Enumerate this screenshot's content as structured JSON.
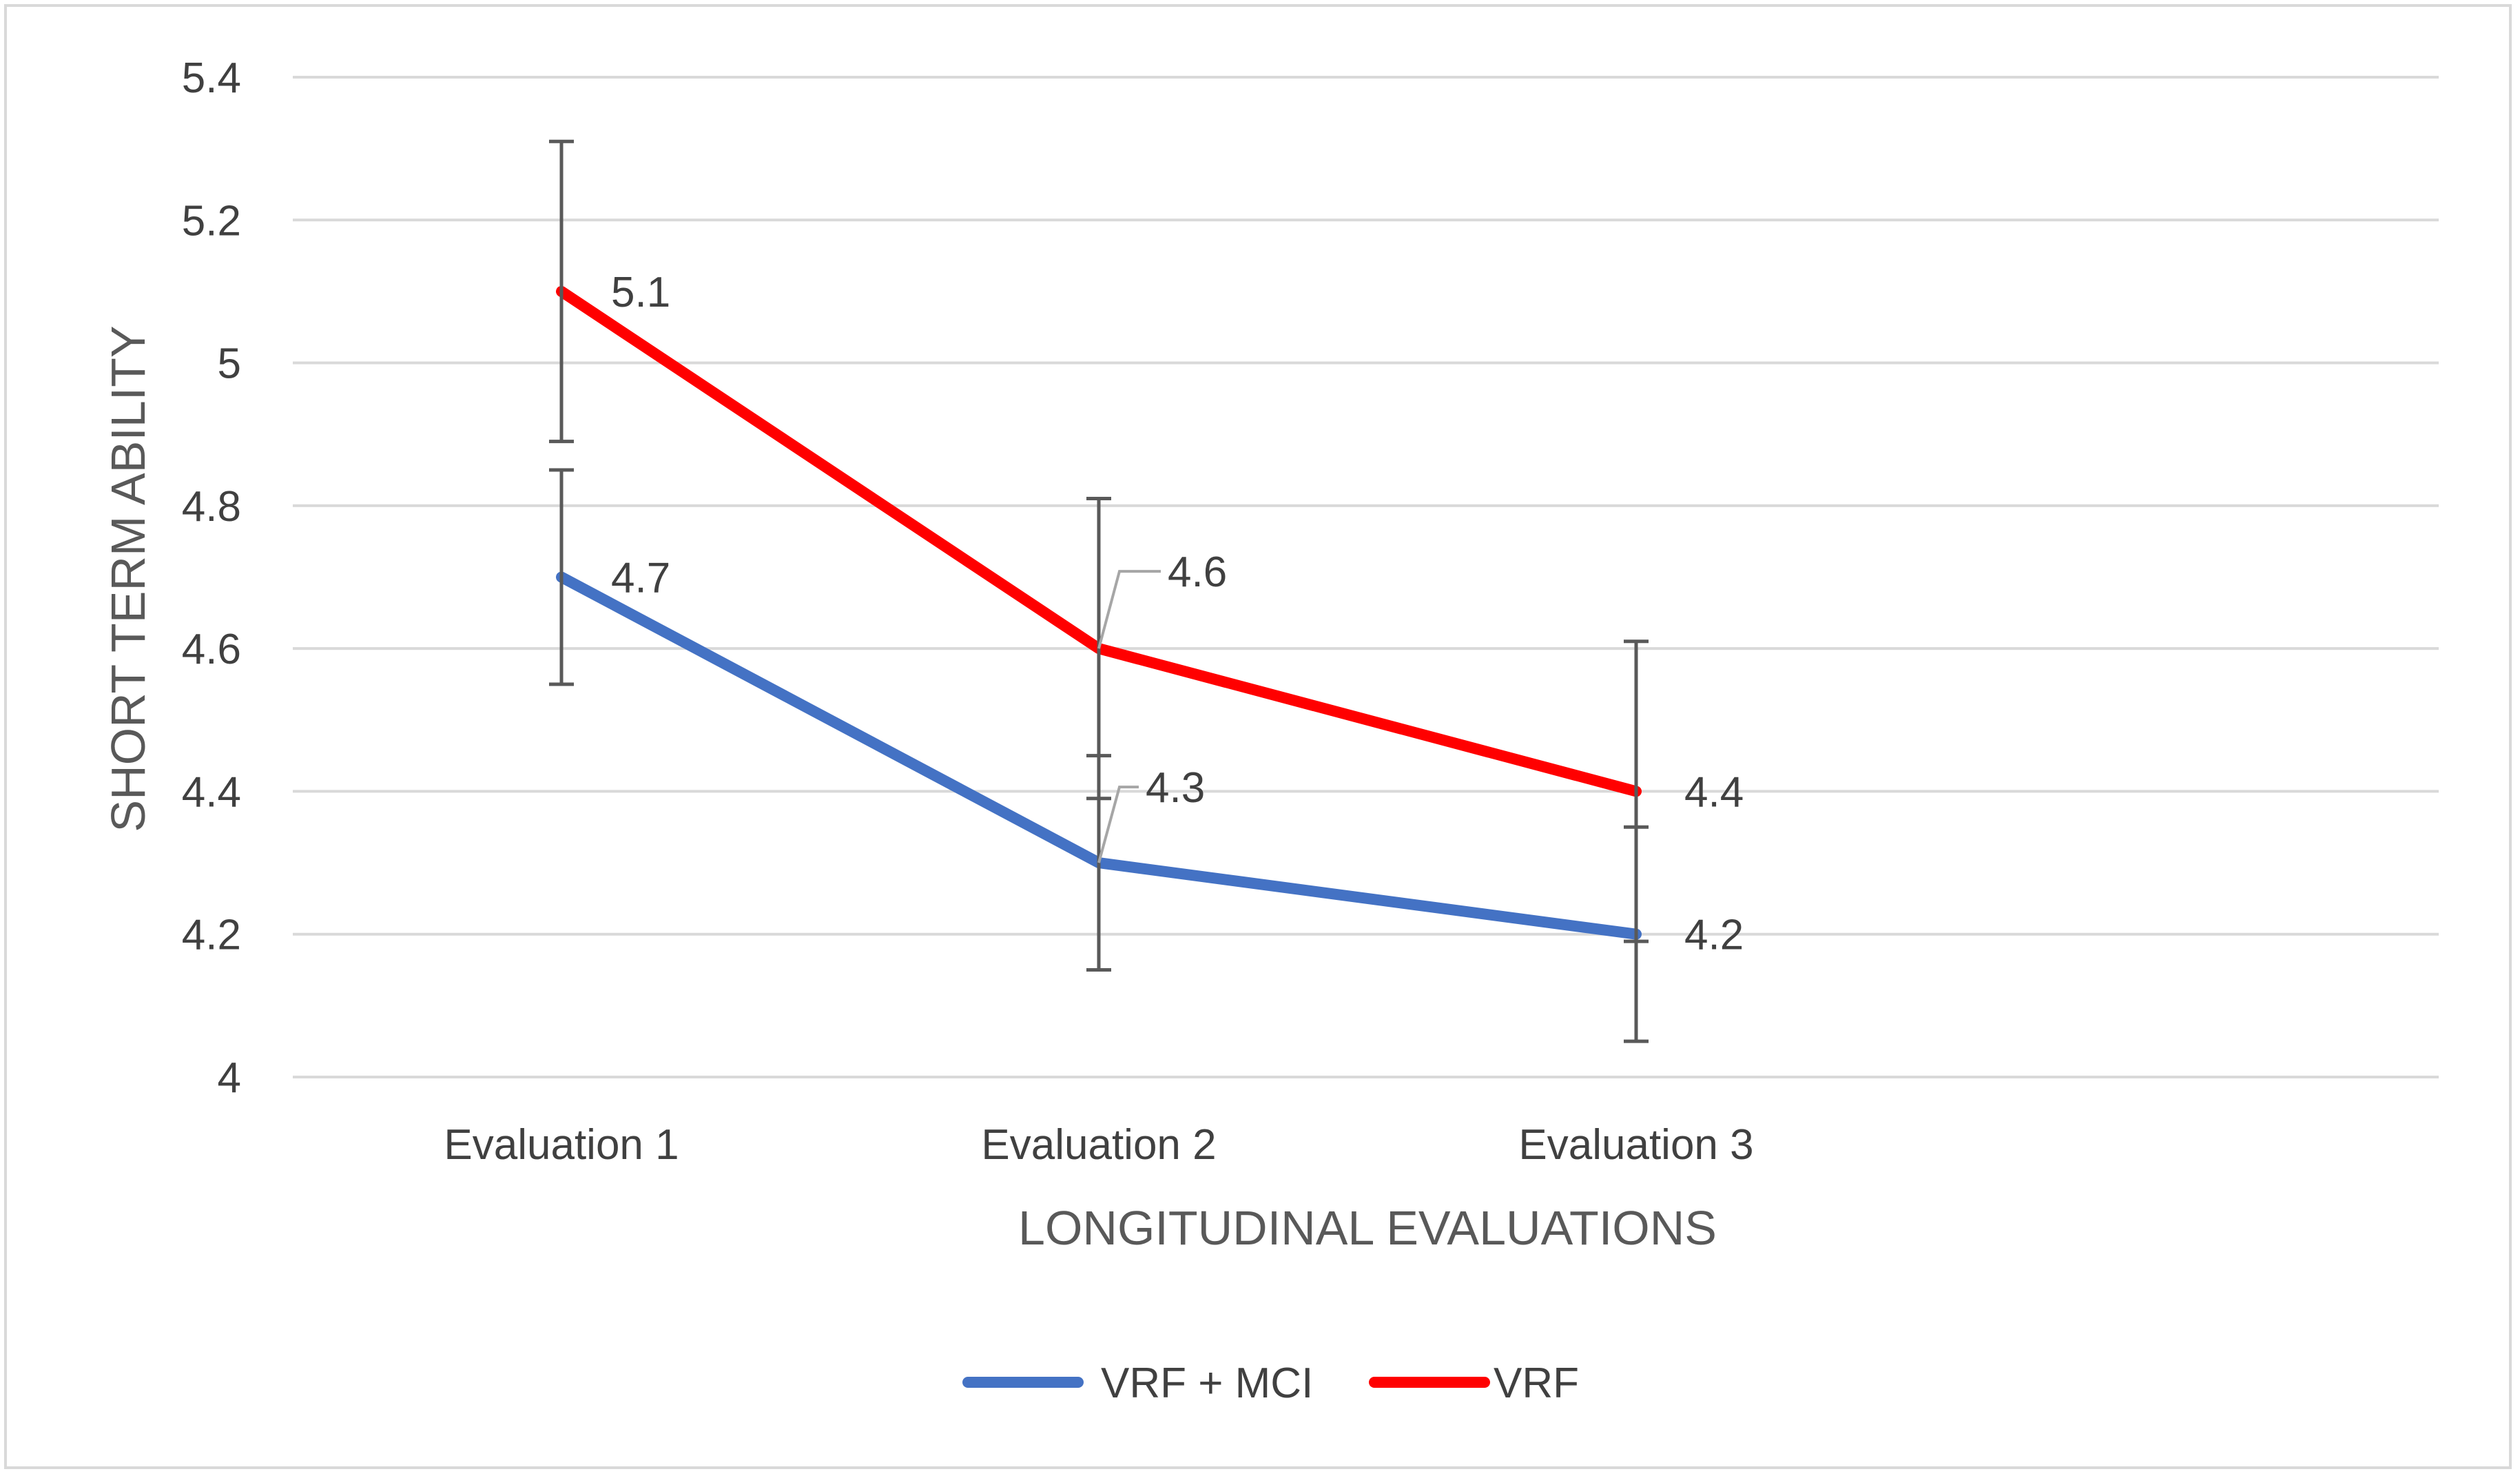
{
  "chart_data": {
    "type": "line",
    "title": "",
    "xlabel": "LONGITUDINAL EVALUATIONS",
    "ylabel": "SHORT TERM ABILITY",
    "categories": [
      "Evaluation 1",
      "Evaluation 2",
      "Evaluation 3"
    ],
    "ylim": [
      4,
      5.4
    ],
    "yticks": [
      "4",
      "4.2",
      "4.4",
      "4.6",
      "4.8",
      "5",
      "5.2",
      "5.4"
    ],
    "grid": true,
    "legend_position": "bottom",
    "series": [
      {
        "name": "VRF + MCI",
        "color": "#4472c4",
        "values": [
          4.7,
          4.3,
          4.2
        ],
        "labels": [
          "4.7",
          "4.3",
          "4.2"
        ],
        "error_low": [
          4.55,
          4.15,
          4.05
        ],
        "error_high": [
          4.85,
          4.45,
          4.35
        ]
      },
      {
        "name": "VRF",
        "color": "#ff0000",
        "values": [
          5.1,
          4.6,
          4.4
        ],
        "labels": [
          "5.1",
          "4.6",
          "4.4"
        ],
        "error_low": [
          4.89,
          4.39,
          4.19
        ],
        "error_high": [
          5.31,
          4.81,
          4.61
        ]
      }
    ]
  }
}
